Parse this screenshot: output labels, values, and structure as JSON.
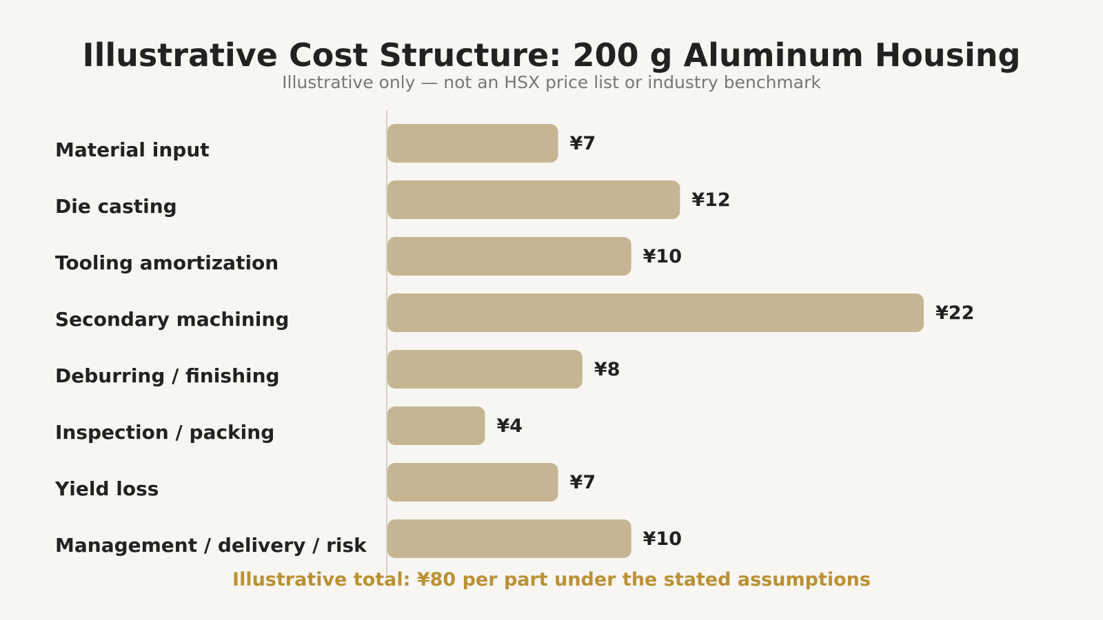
{
  "chart_data": {
    "type": "bar",
    "orientation": "horizontal",
    "title": "Illustrative Cost Structure: 200 g Aluminum Housing",
    "subtitle": "Illustrative only — not an HSX price list or industry benchmark",
    "categories": [
      "Material input",
      "Die casting",
      "Tooling amortization",
      "Secondary machining",
      "Deburring / finishing",
      "Inspection / packing",
      "Yield loss",
      "Management / delivery / risk"
    ],
    "values": [
      7,
      12,
      10,
      22,
      8,
      4,
      7,
      10
    ],
    "value_labels": [
      "¥7",
      "¥12",
      "¥10",
      "¥22",
      "¥8",
      "¥4",
      "¥7",
      "¥10"
    ],
    "xlim": [
      0,
      22
    ],
    "grid": false,
    "legend": "none",
    "footer": "Illustrative total: ¥80 per part under the stated assumptions"
  },
  "colors": {
    "background": "#f7f6f2",
    "bar": "#c5b592",
    "axis": "#d6d1c6",
    "text": "#222222",
    "subtitle": "#777777",
    "footer": "#bb9134"
  }
}
